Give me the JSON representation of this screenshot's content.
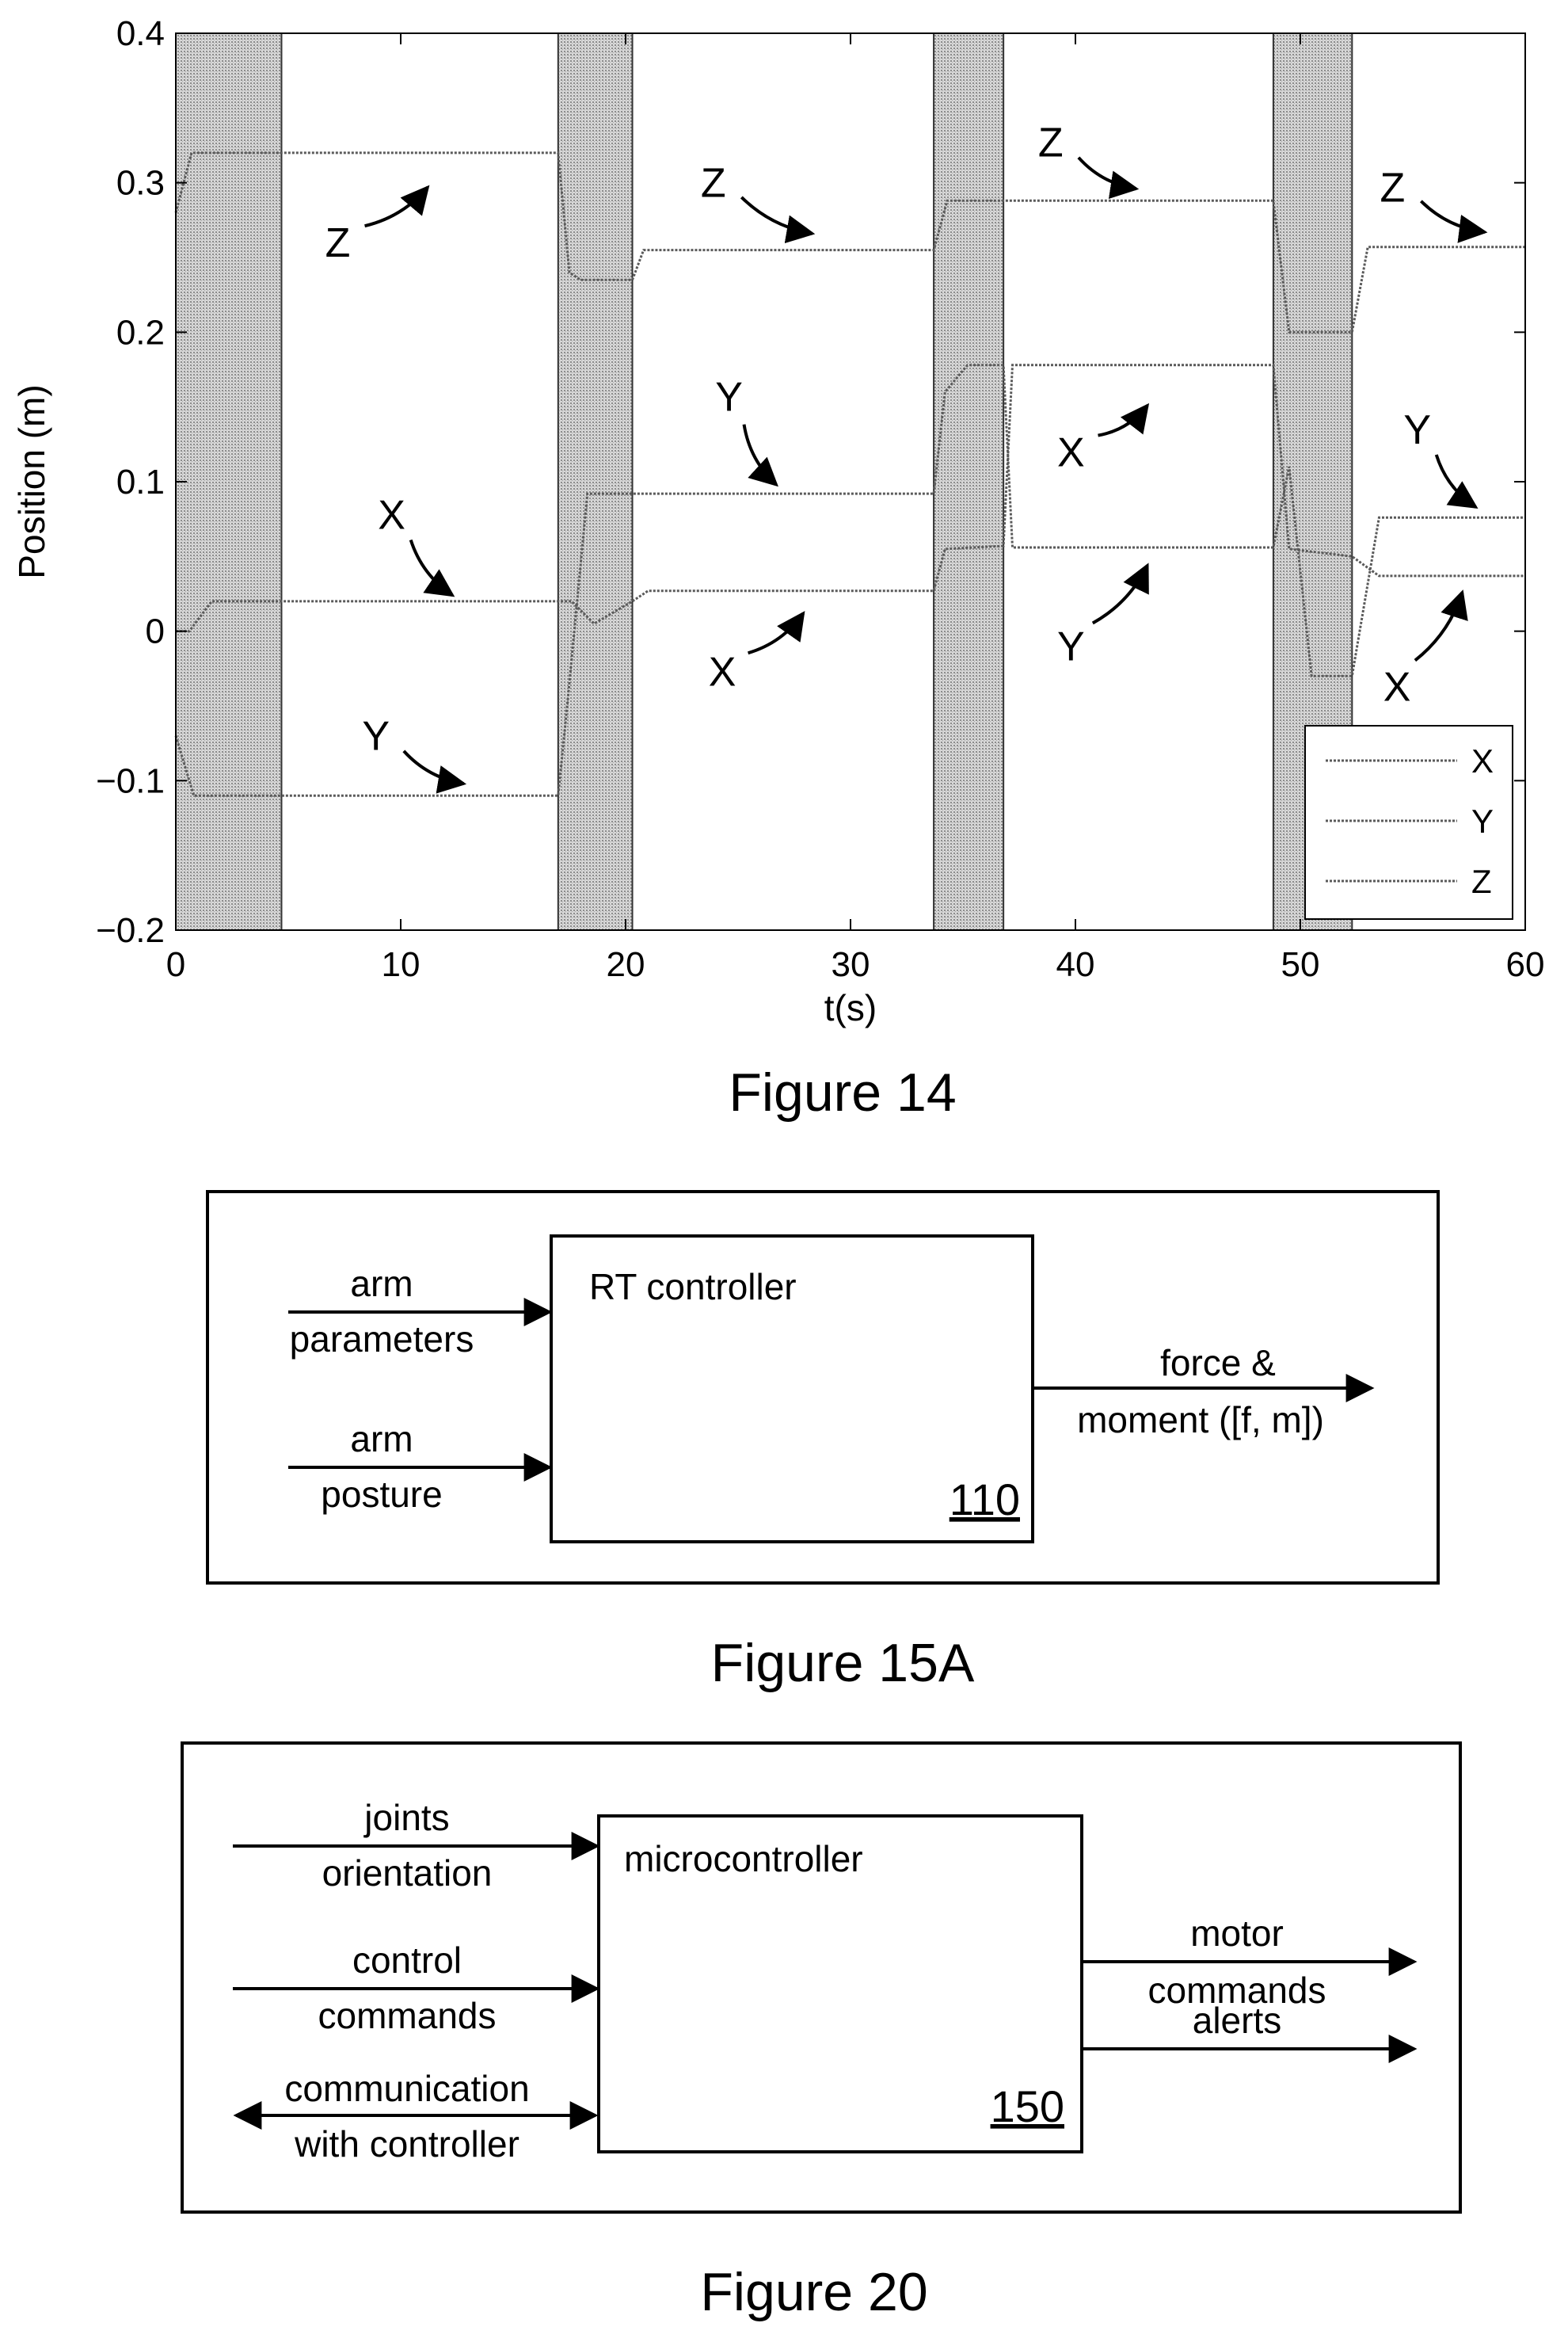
{
  "figure14": {
    "caption": "Figure 14",
    "chart_data": {
      "type": "line",
      "xlabel": "t(s)",
      "ylabel": "Position (m)",
      "xlim": [
        0,
        60
      ],
      "ylim": [
        -0.2,
        0.4
      ],
      "xticks": [
        0,
        10,
        20,
        30,
        40,
        50,
        60
      ],
      "yticks": [
        -0.2,
        -0.1,
        0,
        0.1,
        0.2,
        0.3,
        0.4
      ],
      "xtick_labels": [
        "0",
        "10",
        "20",
        "30",
        "40",
        "50",
        "60"
      ],
      "ytick_labels": [
        "−0.2",
        "−0.1",
        "0",
        "0.1",
        "0.2",
        "0.3",
        "0.4"
      ],
      "shaded_intervals": [
        [
          0,
          4.7
        ],
        [
          17,
          20.3
        ],
        [
          33.7,
          36.8
        ],
        [
          48.8,
          52.3
        ]
      ],
      "legend": {
        "placement": "bottom-right",
        "entries": [
          "X",
          "Y",
          "Z"
        ]
      },
      "series": [
        {
          "name": "X",
          "points": [
            [
              0,
              0
            ],
            [
              0.6,
              0
            ],
            [
              1.6,
              0.02
            ],
            [
              17,
              0.02
            ],
            [
              17.6,
              0.02
            ],
            [
              18.6,
              0.005
            ],
            [
              20.3,
              0.02
            ],
            [
              21,
              0.027
            ],
            [
              33.7,
              0.027
            ],
            [
              34.2,
              0.055
            ],
            [
              36.8,
              0.057
            ],
            [
              37.2,
              0.178
            ],
            [
              48.8,
              0.178
            ],
            [
              49.5,
              0.055
            ],
            [
              52.3,
              0.05
            ],
            [
              53.5,
              0.037
            ],
            [
              60,
              0.037
            ]
          ]
        },
        {
          "name": "Y",
          "points": [
            [
              0,
              -0.07
            ],
            [
              0.8,
              -0.11
            ],
            [
              4.7,
              -0.11
            ],
            [
              17,
              -0.11
            ],
            [
              17.4,
              -0.05
            ],
            [
              18.3,
              0.092
            ],
            [
              20.3,
              0.092
            ],
            [
              33.7,
              0.092
            ],
            [
              34.2,
              0.16
            ],
            [
              35.2,
              0.178
            ],
            [
              36.8,
              0.178
            ],
            [
              37.2,
              0.056
            ],
            [
              48.8,
              0.056
            ],
            [
              49.5,
              0.11
            ],
            [
              50.5,
              -0.03
            ],
            [
              52.3,
              -0.03
            ],
            [
              53.5,
              0.076
            ],
            [
              60,
              0.076
            ]
          ]
        },
        {
          "name": "Z",
          "points": [
            [
              0,
              0.28
            ],
            [
              0.7,
              0.32
            ],
            [
              17,
              0.32
            ],
            [
              17.5,
              0.24
            ],
            [
              18,
              0.235
            ],
            [
              20.3,
              0.235
            ],
            [
              20.8,
              0.255
            ],
            [
              33.7,
              0.255
            ],
            [
              34.3,
              0.288
            ],
            [
              48.8,
              0.288
            ],
            [
              49.5,
              0.2
            ],
            [
              52.3,
              0.2
            ],
            [
              53,
              0.257
            ],
            [
              60,
              0.257
            ]
          ]
        }
      ],
      "annotations": [
        {
          "text": "Z",
          "x": 7.2,
          "y": 0.26,
          "tip": [
            11.2,
            0.297
          ]
        },
        {
          "text": "X",
          "x": 9.6,
          "y": 0.078,
          "tip": [
            12.3,
            0.024
          ]
        },
        {
          "text": "Y",
          "x": 8.9,
          "y": -0.07,
          "tip": [
            12.8,
            -0.102
          ]
        },
        {
          "text": "Z",
          "x": 23.9,
          "y": 0.3,
          "tip": [
            28.3,
            0.266
          ]
        },
        {
          "text": "Y",
          "x": 24.6,
          "y": 0.157,
          "tip": [
            26.7,
            0.098
          ]
        },
        {
          "text": "X",
          "x": 24.3,
          "y": -0.027,
          "tip": [
            27.9,
            0.012
          ]
        },
        {
          "text": "Z",
          "x": 38.9,
          "y": 0.327,
          "tip": [
            42.7,
            0.296
          ]
        },
        {
          "text": "X",
          "x": 39.8,
          "y": 0.12,
          "tip": [
            43.2,
            0.151
          ]
        },
        {
          "text": "Y",
          "x": 39.8,
          "y": -0.01,
          "tip": [
            43.2,
            0.044
          ]
        },
        {
          "text": "Z",
          "x": 54.1,
          "y": 0.297,
          "tip": [
            58.2,
            0.267
          ]
        },
        {
          "text": "Y",
          "x": 55.2,
          "y": 0.135,
          "tip": [
            57.8,
            0.083
          ]
        },
        {
          "text": "X",
          "x": 54.3,
          "y": -0.037,
          "tip": [
            57.2,
            0.026
          ]
        }
      ]
    }
  },
  "figure15a": {
    "caption": "Figure 15A",
    "box_label": "RT controller",
    "ref": "110",
    "inputs": [
      {
        "line1": "arm",
        "line2": "parameters"
      },
      {
        "line1": "arm",
        "line2": "posture"
      }
    ],
    "output": {
      "line1": "force &",
      "line2": "moment ([f, m])"
    }
  },
  "figure20": {
    "caption": "Figure 20",
    "box_label": "microcontroller",
    "ref": "150",
    "inputs": [
      {
        "line1": "joints",
        "line2": "orientation"
      },
      {
        "line1": "control",
        "line2": "commands"
      },
      {
        "line1": "communication",
        "line2": "with controller"
      }
    ],
    "outputs": [
      {
        "line1": "motor",
        "line2": "commands"
      },
      {
        "line1": "alerts",
        "line2": ""
      }
    ]
  }
}
